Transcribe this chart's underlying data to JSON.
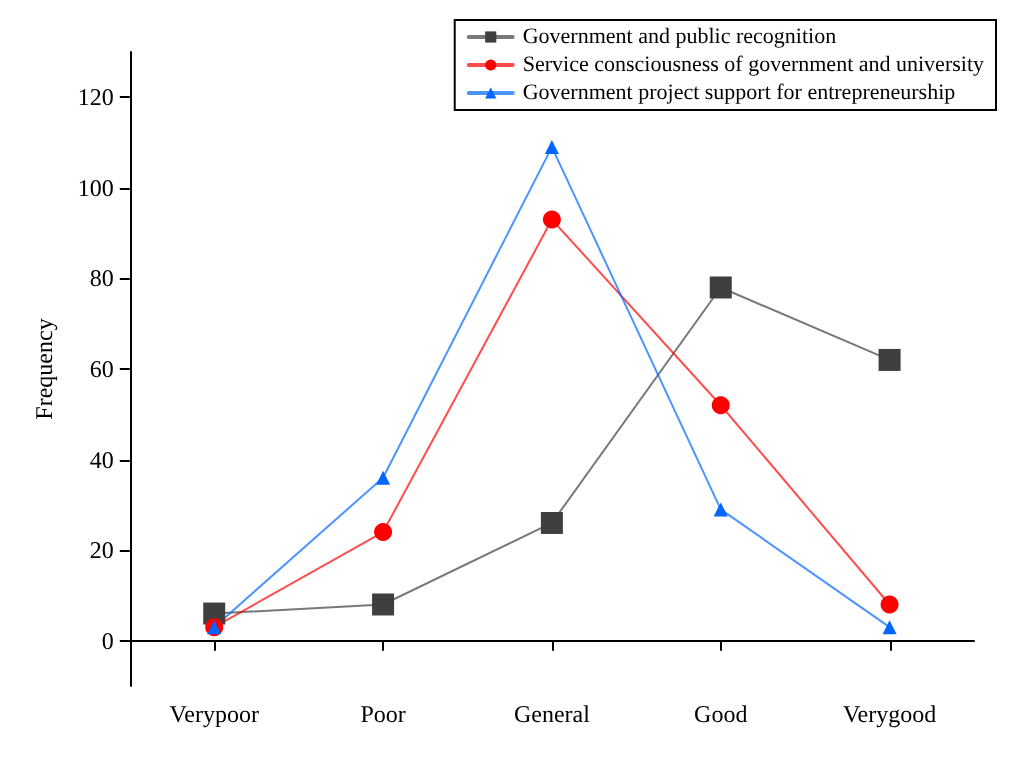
{
  "chart_data": {
    "type": "line",
    "ylabel": "Frequency",
    "categories": [
      "Verypoor",
      "Poor",
      "General",
      "Good",
      "Verygood"
    ],
    "series": [
      {
        "name": "Government and public recognition",
        "color": "#3f3f3f",
        "marker": "square",
        "values": [
          6,
          8,
          26,
          78,
          62
        ]
      },
      {
        "name": "Service consciousness of government and university",
        "color": "#ff0000",
        "marker": "circle",
        "values": [
          3,
          24,
          93,
          52,
          8
        ]
      },
      {
        "name": "Government project support for entrepreneurship",
        "color": "#0066ff",
        "marker": "triangle",
        "values": [
          3,
          36,
          109,
          29,
          3
        ]
      }
    ],
    "ylim": [
      -10,
      130
    ],
    "yticks": [
      0,
      20,
      40,
      60,
      80,
      100,
      120
    ],
    "grid": false,
    "legend": "top right",
    "line_style": "solid"
  }
}
